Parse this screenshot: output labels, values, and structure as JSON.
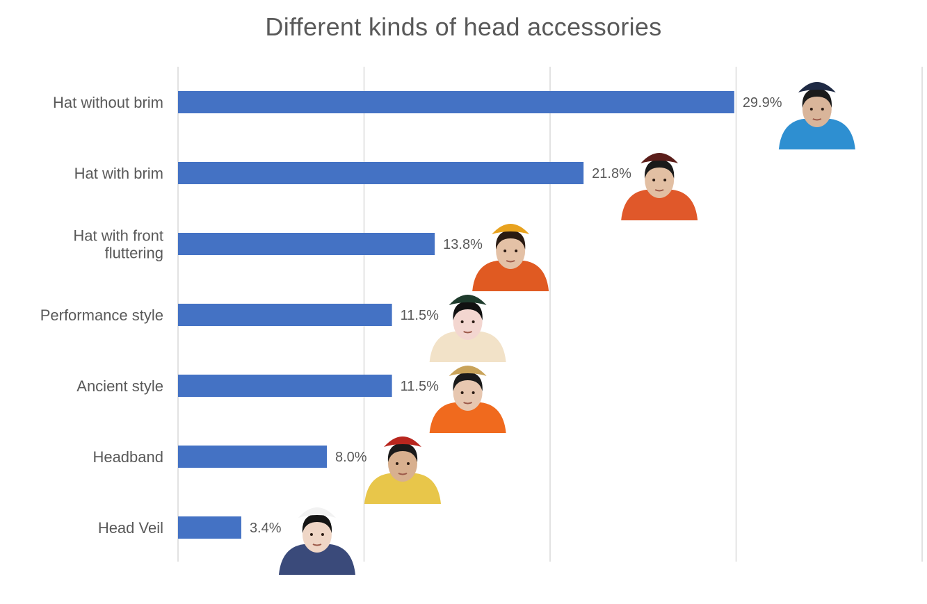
{
  "chart_data": {
    "type": "bar",
    "orientation": "horizontal",
    "title": "Different kinds of head accessories",
    "xlabel": "",
    "ylabel": "",
    "xlim": [
      0,
      35
    ],
    "grid": true,
    "legend": "none",
    "categories": [
      "Hat without brim",
      "Hat with brim",
      "Hat with front fluttering",
      "Performance style",
      "Ancient style",
      "Headband",
      "Head Veil"
    ],
    "category_lines": [
      [
        "Hat without brim"
      ],
      [
        "Hat with brim"
      ],
      [
        "Hat with front",
        "fluttering"
      ],
      [
        "Performance style"
      ],
      [
        "Ancient style"
      ],
      [
        "Headband"
      ],
      [
        "Head Veil"
      ]
    ],
    "values": [
      29.9,
      21.8,
      13.8,
      11.5,
      11.5,
      8.0,
      3.4
    ],
    "data_labels": [
      "29.9%",
      "21.8%",
      "13.8%",
      "11.5%",
      "11.5%",
      "8.0%",
      "3.4%"
    ],
    "bar_color": "#4472C4",
    "example_photos": [
      {
        "depicts": "man in round dark cap, blue robe",
        "colors": {
          "garment": "#2E8FD1",
          "hat": "#1F2A44",
          "skin": "#D9B59A",
          "hair": "#1A1A1A"
        }
      },
      {
        "depicts": "man in wide-brimmed dark red hat, orange robe",
        "colors": {
          "garment": "#E0582A",
          "hat": "#5B1E1A",
          "skin": "#E2BFA3",
          "hair": "#1A1A1A"
        }
      },
      {
        "depicts": "woman in golden crown hat with beaded fringe, orange robe",
        "colors": {
          "garment": "#E05A22",
          "hat": "#E8A21E",
          "skin": "#E4C1A6",
          "hair": "#2A1A12"
        }
      },
      {
        "depicts": "opera performer with elaborate black-green headdress",
        "colors": {
          "garment": "#F2E2C8",
          "hat": "#1E3B2C",
          "skin": "#F3D6D0",
          "hair": "#111111"
        }
      },
      {
        "depicts": "woman with ancient-style hair ornaments, orange top",
        "colors": {
          "garment": "#F06A1E",
          "hat": "#C9A35A",
          "skin": "#E7C7B0",
          "hair": "#1A1A1A"
        }
      },
      {
        "depicts": "man with red patterned headband and tassels",
        "colors": {
          "garment": "#E8C64A",
          "hat": "#B8261E",
          "skin": "#D8B08F",
          "hair": "#1A1A1A"
        }
      },
      {
        "depicts": "woman with white floral veil, navy dress",
        "colors": {
          "garment": "#3A4A7A",
          "hat": "#F2F2F2",
          "skin": "#EFD6C6",
          "hair": "#151515"
        }
      }
    ]
  }
}
